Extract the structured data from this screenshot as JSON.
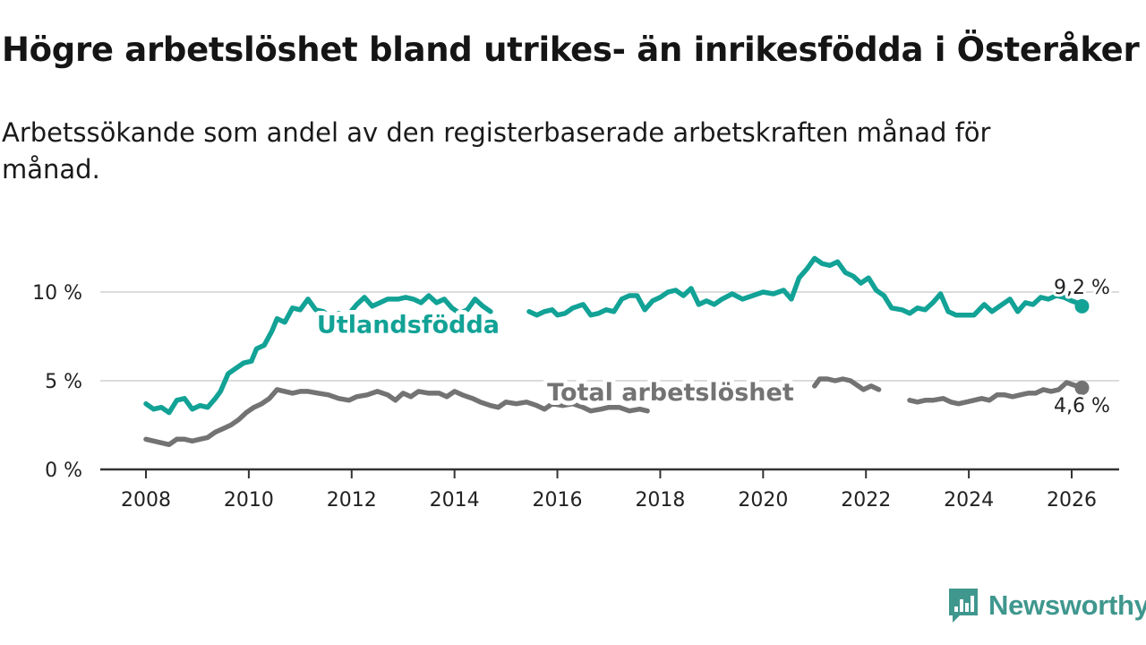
{
  "title": "Högre arbetslöshet bland utrikes- än inrikesfödda i Österåker",
  "subtitle": "Arbetssökande som andel av den registerbaserade arbetskraften månad för månad.",
  "brand": {
    "name": "Newsworthy"
  },
  "colors": {
    "foreign_born": "#12a296",
    "total": "#737373",
    "grid": "#dcdcdc",
    "axis": "#333333"
  },
  "chart_data": {
    "type": "line",
    "title": "Högre arbetslöshet bland utrikes- än inrikesfödda i Österåker",
    "xlabel": "",
    "ylabel": "",
    "xlim": [
      2008,
      2026
    ],
    "ylim": [
      0,
      12
    ],
    "x_ticks": [
      2008,
      2010,
      2012,
      2014,
      2016,
      2018,
      2020,
      2022,
      2024,
      2026
    ],
    "x_tick_labels": [
      "2008",
      "2010",
      "2012",
      "2014",
      "2016",
      "2018",
      "2020",
      "2022",
      "2024",
      "2026"
    ],
    "y_ticks": [
      0,
      5,
      10
    ],
    "y_tick_labels": [
      "0 %",
      "5 %",
      "10 %"
    ],
    "grid": true,
    "series": [
      {
        "name": "Utlandsfödda",
        "color": "#12a296",
        "label_x": 2013.1,
        "label_y": 7.7,
        "end_label": "9,2 %",
        "points": [
          [
            2008.0,
            3.7
          ],
          [
            2008.15,
            3.4
          ],
          [
            2008.3,
            3.5
          ],
          [
            2008.45,
            3.2
          ],
          [
            2008.6,
            3.9
          ],
          [
            2008.75,
            4.0
          ],
          [
            2008.9,
            3.4
          ],
          [
            2009.05,
            3.6
          ],
          [
            2009.2,
            3.5
          ],
          [
            2009.35,
            4.0
          ],
          [
            2009.45,
            4.4
          ],
          [
            2009.6,
            5.4
          ],
          [
            2009.75,
            5.7
          ],
          [
            2009.9,
            6.0
          ],
          [
            2010.05,
            6.1
          ],
          [
            2010.15,
            6.8
          ],
          [
            2010.3,
            7.0
          ],
          [
            2010.45,
            7.8
          ],
          [
            2010.55,
            8.5
          ],
          [
            2010.7,
            8.3
          ],
          [
            2010.85,
            9.1
          ],
          [
            2011.0,
            9.0
          ],
          [
            2011.15,
            9.6
          ],
          [
            2011.3,
            9.0
          ],
          [
            2011.45,
            8.9
          ],
          [
            2011.6,
            8.5
          ],
          [
            2011.75,
            8.8
          ],
          [
            2011.9,
            8.6
          ],
          [
            2012.1,
            9.3
          ],
          [
            2012.25,
            9.7
          ],
          [
            2012.4,
            9.2
          ],
          [
            2012.55,
            9.4
          ],
          [
            2012.7,
            9.6
          ],
          [
            2012.9,
            9.6
          ],
          [
            2013.05,
            9.7
          ],
          [
            2013.2,
            9.6
          ],
          [
            2013.35,
            9.4
          ],
          [
            2013.5,
            9.8
          ],
          [
            2013.65,
            9.4
          ],
          [
            2013.8,
            9.6
          ],
          [
            2013.95,
            9.1
          ],
          [
            2014.1,
            8.8
          ],
          [
            2014.25,
            9.0
          ],
          [
            2014.4,
            9.6
          ],
          [
            2014.55,
            9.2
          ],
          [
            2014.7,
            8.9
          ]
        ],
        "points_b": [
          [
            2015.45,
            8.9
          ],
          [
            2015.6,
            8.7
          ],
          [
            2015.75,
            8.9
          ],
          [
            2015.9,
            9.0
          ],
          [
            2016.0,
            8.7
          ],
          [
            2016.15,
            8.8
          ],
          [
            2016.3,
            9.1
          ],
          [
            2016.5,
            9.3
          ],
          [
            2016.65,
            8.7
          ],
          [
            2016.8,
            8.8
          ],
          [
            2016.95,
            9.0
          ],
          [
            2017.1,
            8.9
          ],
          [
            2017.25,
            9.6
          ],
          [
            2017.4,
            9.8
          ],
          [
            2017.55,
            9.8
          ],
          [
            2017.7,
            9.0
          ],
          [
            2017.85,
            9.5
          ],
          [
            2018.0,
            9.7
          ],
          [
            2018.15,
            10.0
          ],
          [
            2018.3,
            10.1
          ],
          [
            2018.45,
            9.8
          ],
          [
            2018.6,
            10.2
          ],
          [
            2018.75,
            9.3
          ],
          [
            2018.9,
            9.5
          ],
          [
            2019.05,
            9.3
          ],
          [
            2019.2,
            9.6
          ],
          [
            2019.4,
            9.9
          ],
          [
            2019.6,
            9.6
          ],
          [
            2019.8,
            9.8
          ],
          [
            2020.0,
            10.0
          ],
          [
            2020.2,
            9.9
          ],
          [
            2020.4,
            10.1
          ],
          [
            2020.55,
            9.6
          ],
          [
            2020.7,
            10.8
          ],
          [
            2020.85,
            11.3
          ],
          [
            2021.0,
            11.9
          ],
          [
            2021.15,
            11.6
          ],
          [
            2021.3,
            11.5
          ],
          [
            2021.45,
            11.7
          ],
          [
            2021.6,
            11.1
          ],
          [
            2021.75,
            10.9
          ],
          [
            2021.9,
            10.5
          ],
          [
            2022.05,
            10.8
          ],
          [
            2022.2,
            10.1
          ],
          [
            2022.35,
            9.8
          ],
          [
            2022.5,
            9.1
          ],
          [
            2022.7,
            9.0
          ],
          [
            2022.85,
            8.8
          ],
          [
            2023.0,
            9.1
          ],
          [
            2023.15,
            9.0
          ],
          [
            2023.3,
            9.4
          ],
          [
            2023.45,
            9.9
          ],
          [
            2023.6,
            8.9
          ],
          [
            2023.75,
            8.7
          ],
          [
            2023.95,
            8.7
          ],
          [
            2024.1,
            8.7
          ],
          [
            2024.3,
            9.3
          ],
          [
            2024.45,
            8.9
          ],
          [
            2024.6,
            9.2
          ],
          [
            2024.8,
            9.6
          ],
          [
            2024.95,
            8.9
          ],
          [
            2025.1,
            9.4
          ],
          [
            2025.25,
            9.3
          ],
          [
            2025.4,
            9.7
          ],
          [
            2025.55,
            9.6
          ],
          [
            2025.7,
            9.8
          ],
          [
            2025.85,
            9.7
          ],
          [
            2026.0,
            9.5
          ],
          [
            2026.1,
            9.4
          ],
          [
            2026.2,
            9.2
          ]
        ]
      },
      {
        "name": "Total arbetslöshet",
        "color": "#737373",
        "label_x": 2018.2,
        "label_y": 3.9,
        "end_label": "4,6 %",
        "points": [
          [
            2008.0,
            1.7
          ],
          [
            2008.15,
            1.6
          ],
          [
            2008.3,
            1.5
          ],
          [
            2008.45,
            1.4
          ],
          [
            2008.6,
            1.7
          ],
          [
            2008.75,
            1.7
          ],
          [
            2008.9,
            1.6
          ],
          [
            2009.05,
            1.7
          ],
          [
            2009.2,
            1.8
          ],
          [
            2009.35,
            2.1
          ],
          [
            2009.5,
            2.3
          ],
          [
            2009.65,
            2.5
          ],
          [
            2009.8,
            2.8
          ],
          [
            2009.95,
            3.2
          ],
          [
            2010.1,
            3.5
          ],
          [
            2010.25,
            3.7
          ],
          [
            2010.4,
            4.0
          ],
          [
            2010.55,
            4.5
          ],
          [
            2010.7,
            4.4
          ],
          [
            2010.85,
            4.3
          ],
          [
            2011.0,
            4.4
          ],
          [
            2011.15,
            4.4
          ],
          [
            2011.35,
            4.3
          ],
          [
            2011.55,
            4.2
          ],
          [
            2011.75,
            4.0
          ],
          [
            2011.95,
            3.9
          ],
          [
            2012.1,
            4.1
          ],
          [
            2012.3,
            4.2
          ],
          [
            2012.5,
            4.4
          ],
          [
            2012.7,
            4.2
          ],
          [
            2012.85,
            3.9
          ],
          [
            2013.0,
            4.3
          ],
          [
            2013.15,
            4.1
          ],
          [
            2013.3,
            4.4
          ],
          [
            2013.5,
            4.3
          ],
          [
            2013.7,
            4.3
          ],
          [
            2013.85,
            4.1
          ],
          [
            2014.0,
            4.4
          ],
          [
            2014.15,
            4.2
          ],
          [
            2014.35,
            4.0
          ],
          [
            2014.5,
            3.8
          ],
          [
            2014.7,
            3.6
          ],
          [
            2014.85,
            3.5
          ],
          [
            2015.0,
            3.8
          ],
          [
            2015.2,
            3.7
          ],
          [
            2015.4,
            3.8
          ],
          [
            2015.6,
            3.6
          ],
          [
            2015.75,
            3.4
          ],
          [
            2015.9,
            3.7
          ],
          [
            2016.1,
            3.6
          ],
          [
            2016.3,
            3.7
          ],
          [
            2016.5,
            3.5
          ],
          [
            2016.65,
            3.3
          ],
          [
            2016.85,
            3.4
          ],
          [
            2017.0,
            3.5
          ],
          [
            2017.2,
            3.5
          ],
          [
            2017.4,
            3.3
          ],
          [
            2017.6,
            3.4
          ],
          [
            2017.75,
            3.3
          ]
        ],
        "points_b": [
          [
            2021.0,
            4.7
          ],
          [
            2021.1,
            5.1
          ],
          [
            2021.25,
            5.1
          ],
          [
            2021.4,
            5.0
          ],
          [
            2021.55,
            5.1
          ],
          [
            2021.7,
            5.0
          ],
          [
            2021.85,
            4.7
          ],
          [
            2021.95,
            4.5
          ],
          [
            2022.1,
            4.7
          ],
          [
            2022.25,
            4.5
          ]
        ],
        "points_c": [
          [
            2022.85,
            3.9
          ],
          [
            2023.0,
            3.8
          ],
          [
            2023.15,
            3.9
          ],
          [
            2023.3,
            3.9
          ],
          [
            2023.5,
            4.0
          ],
          [
            2023.65,
            3.8
          ],
          [
            2023.8,
            3.7
          ],
          [
            2023.95,
            3.8
          ],
          [
            2024.1,
            3.9
          ],
          [
            2024.25,
            4.0
          ],
          [
            2024.4,
            3.9
          ],
          [
            2024.55,
            4.2
          ],
          [
            2024.7,
            4.2
          ],
          [
            2024.85,
            4.1
          ],
          [
            2025.0,
            4.2
          ],
          [
            2025.15,
            4.3
          ],
          [
            2025.3,
            4.3
          ],
          [
            2025.45,
            4.5
          ],
          [
            2025.6,
            4.4
          ],
          [
            2025.75,
            4.5
          ],
          [
            2025.9,
            4.9
          ],
          [
            2026.0,
            4.8
          ],
          [
            2026.1,
            4.7
          ],
          [
            2026.2,
            4.6
          ]
        ]
      }
    ]
  }
}
